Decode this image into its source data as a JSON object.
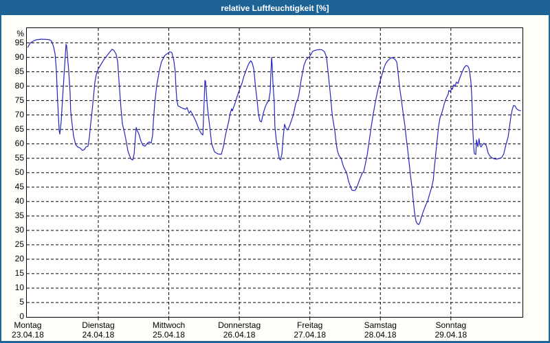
{
  "window": {
    "title": "relative Luftfeuchtigkeit [%]"
  },
  "colors": {
    "titlebar": "#1e6396",
    "titlebar_text": "#ffffff",
    "window_border": "#1e6396",
    "window_background": "#fcfef7",
    "plot_background": "#ffffff",
    "grid": "#000000",
    "axis_text": "#000000",
    "line": "#2424c0"
  },
  "chart_data": {
    "type": "line",
    "title": "relative Luftfeuchtigkeit [%]",
    "ylabel": "%",
    "xlabel": "",
    "ylim": [
      0,
      100
    ],
    "xlim_hours": [
      0,
      168
    ],
    "grid": "dashed",
    "legend": "none",
    "y_ticks": [
      0,
      5,
      10,
      15,
      20,
      25,
      30,
      35,
      40,
      45,
      50,
      55,
      60,
      65,
      70,
      75,
      80,
      85,
      90,
      95
    ],
    "x_days": [
      {
        "name": "Montag",
        "date": "23.04.18"
      },
      {
        "name": "Dienstag",
        "date": "24.04.18"
      },
      {
        "name": "Mittwoch",
        "date": "25.04.18"
      },
      {
        "name": "Donnerstag",
        "date": "26.04.18"
      },
      {
        "name": "Freitag",
        "date": "27.04.18"
      },
      {
        "name": "Samstag",
        "date": "28.04.18"
      },
      {
        "name": "Sonntag",
        "date": "29.04.18"
      }
    ],
    "x_unit": "hours since Montag 00:00",
    "series": [
      {
        "name": "relative Luftfeuchtigkeit",
        "unit": "%",
        "points": [
          [
            0,
            93.5
          ],
          [
            0.8,
            94.9
          ],
          [
            1.8,
            95.6
          ],
          [
            2.9,
            96.1
          ],
          [
            4.6,
            96.3
          ],
          [
            6.5,
            96.2
          ],
          [
            7.4,
            96.1
          ],
          [
            8.1,
            95.6
          ],
          [
            8.8,
            93.6
          ],
          [
            9.3,
            91.2
          ],
          [
            9.7,
            85.8
          ],
          [
            10.2,
            74
          ],
          [
            10.7,
            64.5
          ],
          [
            10.9,
            63.4
          ],
          [
            11.4,
            68
          ],
          [
            11.8,
            75
          ],
          [
            12.3,
            83.2
          ],
          [
            12.8,
            91
          ],
          [
            13,
            94.5
          ],
          [
            13.2,
            94.2
          ],
          [
            13.7,
            88
          ],
          [
            13.9,
            85.8
          ],
          [
            14.4,
            78
          ],
          [
            14.6,
            71.5
          ],
          [
            15.1,
            66.8
          ],
          [
            15.6,
            62.6
          ],
          [
            16.3,
            59.7
          ],
          [
            17,
            58.9
          ],
          [
            17.9,
            58.5
          ],
          [
            18.6,
            57.7
          ],
          [
            19.3,
            58.1
          ],
          [
            19.8,
            58.9
          ],
          [
            20.5,
            59.2
          ],
          [
            21,
            62.5
          ],
          [
            21.4,
            67
          ],
          [
            21.9,
            71.5
          ],
          [
            22.4,
            76.5
          ],
          [
            22.8,
            81
          ],
          [
            23.3,
            84
          ],
          [
            24,
            86
          ],
          [
            24.9,
            87.5
          ],
          [
            26.1,
            89.5
          ],
          [
            27.5,
            91.3
          ],
          [
            28.7,
            92.8
          ],
          [
            29.4,
            92.3
          ],
          [
            30.1,
            91
          ],
          [
            30.6,
            88.5
          ],
          [
            30.8,
            85.5
          ],
          [
            31.3,
            78
          ],
          [
            31.7,
            72.5
          ],
          [
            32.2,
            67
          ],
          [
            32.9,
            64
          ],
          [
            33.4,
            61.5
          ],
          [
            34.1,
            57.5
          ],
          [
            34.8,
            55.5
          ],
          [
            35.2,
            54.7
          ],
          [
            35.7,
            54.4
          ],
          [
            36.2,
            56.5
          ],
          [
            36.6,
            62
          ],
          [
            36.9,
            65.7
          ],
          [
            37.3,
            64.5
          ],
          [
            37.8,
            63.5
          ],
          [
            38.5,
            61
          ],
          [
            39.2,
            59.5
          ],
          [
            39.9,
            59.2
          ],
          [
            40.6,
            60.1
          ],
          [
            41.3,
            60.7
          ],
          [
            42,
            60.3
          ],
          [
            42.5,
            63
          ],
          [
            42.7,
            67
          ],
          [
            43.2,
            74
          ],
          [
            43.9,
            80.3
          ],
          [
            44.8,
            85.5
          ],
          [
            45.5,
            88.5
          ],
          [
            46.7,
            90.7
          ],
          [
            47.4,
            91.2
          ],
          [
            48.3,
            91.9
          ],
          [
            49,
            91.7
          ],
          [
            49.7,
            89
          ],
          [
            50.2,
            85
          ],
          [
            50.4,
            80
          ],
          [
            50.7,
            75.5
          ],
          [
            51.1,
            73.2
          ],
          [
            51.8,
            72.8
          ],
          [
            52.8,
            72.3
          ],
          [
            53.7,
            72
          ],
          [
            54.2,
            72.6
          ],
          [
            54.9,
            70.6
          ],
          [
            55.4,
            71.4
          ],
          [
            56.1,
            70.2
          ],
          [
            57.2,
            67.8
          ],
          [
            58.4,
            64.7
          ],
          [
            59.1,
            63.5
          ],
          [
            59.6,
            63.1
          ],
          [
            60.3,
            82
          ],
          [
            60.5,
            81.7
          ],
          [
            61.1,
            73.2
          ],
          [
            61.9,
            66.3
          ],
          [
            62.6,
            59.9
          ],
          [
            63.6,
            57.2
          ],
          [
            64.7,
            56.5
          ],
          [
            65.9,
            56.4
          ],
          [
            66.6,
            59.1
          ],
          [
            67.3,
            63.1
          ],
          [
            68.2,
            67
          ],
          [
            68.9,
            70.6
          ],
          [
            69.4,
            72.2
          ],
          [
            69.6,
            71.4
          ],
          [
            70.6,
            74.2
          ],
          [
            71.3,
            76.6
          ],
          [
            72,
            78.6
          ],
          [
            72.9,
            81
          ],
          [
            73.6,
            83.5
          ],
          [
            74.3,
            85.5
          ],
          [
            75,
            87.3
          ],
          [
            75.5,
            88.3
          ],
          [
            75.9,
            88.8
          ],
          [
            76.4,
            88
          ],
          [
            76.9,
            86
          ],
          [
            77.6,
            79
          ],
          [
            78.1,
            74.5
          ],
          [
            78.5,
            70.5
          ],
          [
            79,
            68
          ],
          [
            79.5,
            67.6
          ],
          [
            79.9,
            69.5
          ],
          [
            80.4,
            71.5
          ],
          [
            80.9,
            73
          ],
          [
            81.6,
            74.5
          ],
          [
            82,
            74.8
          ],
          [
            82.5,
            78
          ],
          [
            82.7,
            83
          ],
          [
            83,
            90
          ],
          [
            83.2,
            87
          ],
          [
            83.4,
            82
          ],
          [
            83.9,
            74
          ],
          [
            84.1,
            66.1
          ],
          [
            84.6,
            61
          ],
          [
            85.1,
            58
          ],
          [
            85.5,
            55.5
          ],
          [
            85.8,
            54.6
          ],
          [
            86,
            54.4
          ],
          [
            86.5,
            56.5
          ],
          [
            86.9,
            62
          ],
          [
            87.4,
            66.8
          ],
          [
            87.9,
            65.3
          ],
          [
            88.3,
            64.8
          ],
          [
            89,
            66
          ],
          [
            89.7,
            68
          ],
          [
            90.4,
            70.1
          ],
          [
            91.2,
            74
          ],
          [
            91.9,
            75.5
          ],
          [
            92.3,
            77.2
          ],
          [
            93,
            82
          ],
          [
            94,
            87.2
          ],
          [
            94.7,
            89.1
          ],
          [
            95.4,
            89.8
          ],
          [
            95.8,
            90.1
          ],
          [
            96.5,
            91.2
          ],
          [
            97,
            92.1
          ],
          [
            97.7,
            92.4
          ],
          [
            98.6,
            92.6
          ],
          [
            99.6,
            92.7
          ],
          [
            100.3,
            92.5
          ],
          [
            101,
            91.9
          ],
          [
            101.7,
            90
          ],
          [
            102.1,
            86
          ],
          [
            102.6,
            81
          ],
          [
            103.1,
            76
          ],
          [
            103.6,
            70.1
          ],
          [
            104,
            67.5
          ],
          [
            104.5,
            64.5
          ],
          [
            105,
            60
          ],
          [
            105.4,
            57.5
          ],
          [
            105.9,
            56
          ],
          [
            106.6,
            55
          ],
          [
            107.5,
            52
          ],
          [
            108.5,
            50
          ],
          [
            109.2,
            47
          ],
          [
            109.9,
            45
          ],
          [
            110.3,
            44
          ],
          [
            111,
            43.8
          ],
          [
            111.5,
            44
          ],
          [
            112,
            45
          ],
          [
            112.9,
            47.5
          ],
          [
            113.8,
            49.8
          ],
          [
            114.3,
            50.3
          ],
          [
            114.8,
            52.5
          ],
          [
            115.5,
            56
          ],
          [
            116.2,
            61
          ],
          [
            116.9,
            66
          ],
          [
            117.6,
            70.5
          ],
          [
            118.3,
            74.5
          ],
          [
            119,
            78
          ],
          [
            119.7,
            81
          ],
          [
            120.4,
            83.5
          ],
          [
            121.1,
            86
          ],
          [
            121.8,
            87.8
          ],
          [
            122.5,
            88.8
          ],
          [
            123.2,
            89.5
          ],
          [
            123.9,
            89.9
          ],
          [
            124.6,
            89.6
          ],
          [
            125.1,
            89.2
          ],
          [
            125.6,
            88.3
          ],
          [
            126,
            85
          ],
          [
            126.5,
            80
          ],
          [
            127,
            76.4
          ],
          [
            127.7,
            71
          ],
          [
            128.4,
            66
          ],
          [
            128.8,
            62
          ],
          [
            129.3,
            58
          ],
          [
            129.8,
            53.5
          ],
          [
            130.2,
            49.5
          ],
          [
            130.7,
            45.5
          ],
          [
            131.2,
            40.5
          ],
          [
            131.6,
            36.5
          ],
          [
            132.1,
            33.2
          ],
          [
            132.6,
            32.3
          ],
          [
            133,
            32
          ],
          [
            133.5,
            32.8
          ],
          [
            134,
            34.8
          ],
          [
            134.7,
            36.8
          ],
          [
            135.4,
            38.7
          ],
          [
            136.1,
            40.2
          ],
          [
            136.8,
            42.7
          ],
          [
            137.5,
            45
          ],
          [
            138,
            47.5
          ],
          [
            138.4,
            52
          ],
          [
            138.9,
            57
          ],
          [
            139.4,
            62
          ],
          [
            139.8,
            66
          ],
          [
            140.3,
            69
          ],
          [
            141,
            71
          ],
          [
            141.7,
            73.7
          ],
          [
            142.2,
            75.3
          ],
          [
            143.1,
            77.3
          ],
          [
            143.3,
            78.5
          ],
          [
            143.8,
            78.1
          ],
          [
            144.3,
            79.3
          ],
          [
            144.5,
            78.9
          ],
          [
            145,
            80.5
          ],
          [
            145.4,
            79.9
          ],
          [
            145.9,
            81.4
          ],
          [
            146.4,
            80.9
          ],
          [
            146.9,
            82.5
          ],
          [
            147.8,
            84.8
          ],
          [
            148.5,
            86.4
          ],
          [
            149.2,
            87.2
          ],
          [
            149.7,
            87
          ],
          [
            150.1,
            86.4
          ],
          [
            150.4,
            84.8
          ],
          [
            150.8,
            81.7
          ],
          [
            151.1,
            76.5
          ],
          [
            151.3,
            70.9
          ],
          [
            151.5,
            64
          ],
          [
            151.8,
            58.5
          ],
          [
            152,
            56.6
          ],
          [
            152.5,
            56.3
          ],
          [
            152.7,
            61.4
          ],
          [
            153.2,
            59
          ],
          [
            153.6,
            61.8
          ],
          [
            153.9,
            59.5
          ],
          [
            154.3,
            58.9
          ],
          [
            154.8,
            59.8
          ],
          [
            155.3,
            60.2
          ],
          [
            156,
            59.5
          ],
          [
            156.7,
            56.8
          ],
          [
            157.4,
            55.6
          ],
          [
            158.1,
            55.1
          ],
          [
            158.8,
            54.8
          ],
          [
            159.5,
            54.7
          ],
          [
            160.4,
            54.9
          ],
          [
            161.3,
            55.3
          ],
          [
            162,
            56.5
          ],
          [
            162.7,
            59.5
          ],
          [
            163.5,
            62.5
          ],
          [
            163.9,
            65.5
          ],
          [
            164.4,
            69.3
          ],
          [
            164.9,
            71.9
          ],
          [
            165.3,
            73.3
          ],
          [
            165.8,
            73.2
          ],
          [
            166.3,
            72.3
          ],
          [
            166.7,
            71.9
          ],
          [
            167.2,
            71.6
          ],
          [
            167.7,
            71.5
          ]
        ]
      }
    ]
  }
}
